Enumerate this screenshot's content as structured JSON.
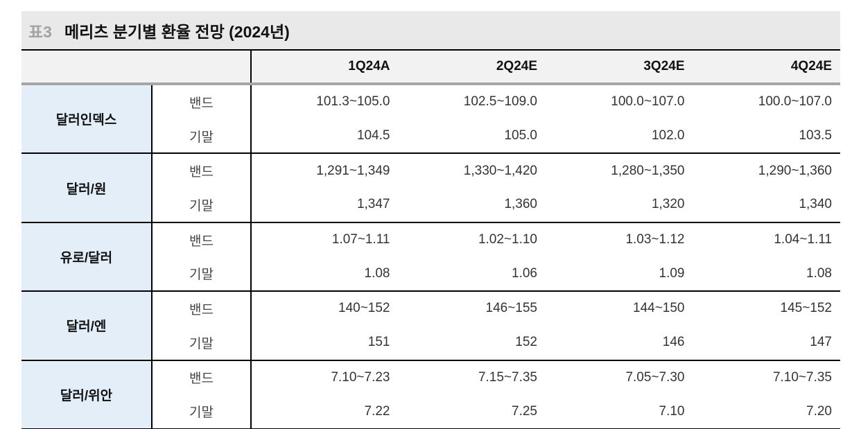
{
  "title": {
    "number": "표3",
    "text": "메리츠 분기별 환율 전망 (2024년)"
  },
  "header": {
    "corner": "",
    "quarters": [
      "1Q24A",
      "2Q24E",
      "3Q24E",
      "4Q24E"
    ]
  },
  "colors": {
    "title_bg": "#e9e9e9",
    "title_number": "#a3a3a3",
    "header_bg": "#f2f2f2",
    "header_rule": "#a6a6a6",
    "label_bg": "#e4eef9",
    "border": "#000000"
  },
  "chart_data": {
    "type": "table",
    "title": "메리츠 분기별 환율 전망 (2024년)",
    "columns": [
      "1Q24A",
      "2Q24E",
      "3Q24E",
      "4Q24E"
    ],
    "rows": [
      {
        "currency": "달러인덱스",
        "metric": "밴드",
        "values": [
          "101.3~105.0",
          "102.5~109.0",
          "100.0~107.0",
          "100.0~107.0"
        ]
      },
      {
        "currency": "달러인덱스",
        "metric": "기말",
        "values": [
          "104.5",
          "105.0",
          "102.0",
          "103.5"
        ]
      },
      {
        "currency": "달러/원",
        "metric": "밴드",
        "values": [
          "1,291~1,349",
          "1,330~1,420",
          "1,280~1,350",
          "1,290~1,360"
        ]
      },
      {
        "currency": "달러/원",
        "metric": "기말",
        "values": [
          "1,347",
          "1,360",
          "1,320",
          "1,340"
        ]
      },
      {
        "currency": "유로/달러",
        "metric": "밴드",
        "values": [
          "1.07~1.11",
          "1.02~1.10",
          "1.03~1.12",
          "1.04~1.11"
        ]
      },
      {
        "currency": "유로/달러",
        "metric": "기말",
        "values": [
          "1.08",
          "1.06",
          "1.09",
          "1.08"
        ]
      },
      {
        "currency": "달러/엔",
        "metric": "밴드",
        "values": [
          "140~152",
          "146~155",
          "144~150",
          "145~152"
        ]
      },
      {
        "currency": "달러/엔",
        "metric": "기말",
        "values": [
          "151",
          "152",
          "146",
          "147"
        ]
      },
      {
        "currency": "달러/위안",
        "metric": "밴드",
        "values": [
          "7.10~7.23",
          "7.15~7.35",
          "7.05~7.30",
          "7.10~7.35"
        ]
      },
      {
        "currency": "달러/위안",
        "metric": "기말",
        "values": [
          "7.22",
          "7.25",
          "7.10",
          "7.20"
        ]
      }
    ]
  }
}
